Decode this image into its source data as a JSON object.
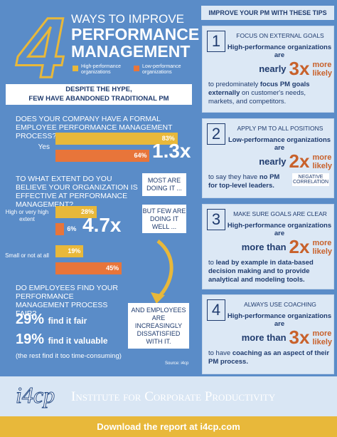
{
  "header": {
    "numeral": "4",
    "title_lines": [
      "WAYS TO IMPROVE",
      "PERFORMANCE",
      "MANAGEMENT"
    ]
  },
  "legend": [
    {
      "label": "High-performance organizations",
      "color": "#e8b83a"
    },
    {
      "label": "Low-performance organizations",
      "color": "#e8753a"
    }
  ],
  "banner": [
    "DESPITE THE HYPE,",
    "FEW HAVE ABANDONED TRADITIONAL PM"
  ],
  "questions": [
    {
      "text": "DOES YOUR COMPANY HAVE A FORMAL EMPLOYEE PERFORMANCE MANAGEMENT PROCESS?",
      "groups": [
        {
          "label": "Yes",
          "values": [
            83,
            64
          ],
          "value_labels": [
            "83%",
            "64%"
          ],
          "multiplier": "1.3x"
        }
      ],
      "callout": "MOST ARE DOING IT ..."
    },
    {
      "text": "TO WHAT EXTENT DO YOU BELIEVE YOUR ORGANIZATION IS EFFECTIVE AT PERFORMANCE MANAGEMENT?",
      "groups": [
        {
          "label": "High or very high extent",
          "values": [
            28,
            6
          ],
          "value_labels": [
            "28%",
            "6%"
          ],
          "multiplier": "4.7x"
        },
        {
          "label": "Small or not at all",
          "values": [
            19,
            45
          ],
          "value_labels": [
            "19%",
            "45%"
          ]
        }
      ],
      "callout": "BUT FEW ARE DOING IT WELL ..."
    },
    {
      "text": "DO EMPLOYEES FIND YOUR PERFORMANCE MANAGEMENT PROCESS FAIR?",
      "stats": [
        {
          "value": "29%",
          "label": "find it fair"
        },
        {
          "value": "19%",
          "label": "find it valuable"
        }
      ],
      "note": "(the rest find it too time-consuming)",
      "callout": "AND EMPLOYEES ARE INCREASINGLY DISSATISFIED WITH IT."
    }
  ],
  "source": "Source: i4cp",
  "tips_heading": "IMPROVE YOUR PM WITH THESE TIPS",
  "tips": [
    {
      "number": "1",
      "heading": "FOCUS ON EXTERNAL GOALS",
      "lead": "High-performance organizations are",
      "qualifier": "nearly",
      "multiplier": "3x",
      "more": "more",
      "likely": "likely",
      "body": [
        "to predominately ",
        "focus PM goals externally",
        " on customer's needs, markets, and competitors."
      ]
    },
    {
      "number": "2",
      "heading": "APPLY PM TO ALL POSITIONS",
      "lead": "Low-performance organizations are",
      "qualifier": "nearly",
      "multiplier": "2x",
      "more": "more",
      "likely": "likely",
      "body": [
        "to say they have ",
        "no PM for top-level leaders."
      ],
      "tag": "NEGATIVE CORRELATION"
    },
    {
      "number": "3",
      "heading": "MAKE SURE GOALS ARE CLEAR",
      "lead": "High-performance organizations are",
      "qualifier": "more than",
      "multiplier": "2x",
      "more": "more",
      "likely": "likely",
      "body": [
        "to ",
        "lead by example in data-based decision making and to provide analytical and modeling tools."
      ]
    },
    {
      "number": "4",
      "heading": "ALWAYS USE COACHING",
      "lead": "High-performance organizations are",
      "qualifier": "more than",
      "multiplier": "3x",
      "more": "more",
      "likely": "likely",
      "body": [
        "to have ",
        "coaching as an aspect of their PM process."
      ]
    }
  ],
  "footer": {
    "logo": "i4cp",
    "org": "Institute for Corporate Productivity",
    "download": "Download the report at i4cp.com"
  }
}
